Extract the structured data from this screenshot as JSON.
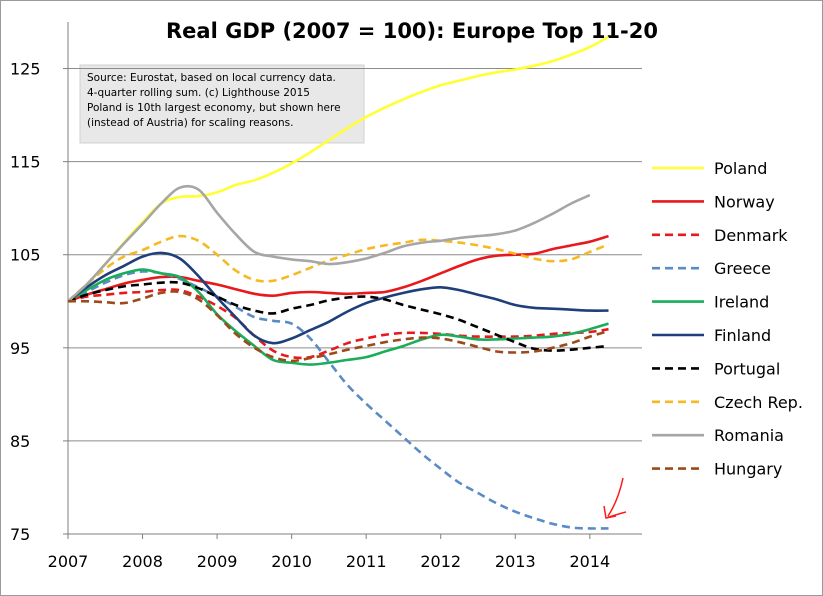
{
  "chart_data": {
    "type": "line",
    "title": "Real GDP (2007 = 100): Europe Top 11-20",
    "xlabel": "",
    "ylabel": "",
    "xlim": [
      2007,
      2014.7
    ],
    "ylim": [
      75,
      130
    ],
    "x_ticks": [
      2007,
      2008,
      2009,
      2010,
      2011,
      2012,
      2013,
      2014
    ],
    "y_ticks": [
      75,
      85,
      95,
      105,
      115,
      125
    ],
    "grid": "horizontal",
    "legend_position": "right",
    "annotation": {
      "lines": [
        "Source: Eurostat, based on local currency data.",
        "4-quarter rolling sum. (c) Lighthouse 2015",
        "Poland is 10th largest economy, but shown here",
        "(instead of Austria) for scaling reasons."
      ]
    },
    "series": [
      {
        "name": "Poland",
        "color": "#ffff33",
        "dash": "solid",
        "x": [
          2007,
          2007.25,
          2007.5,
          2007.75,
          2008,
          2008.25,
          2008.5,
          2008.75,
          2009,
          2009.25,
          2009.5,
          2009.75,
          2010,
          2010.25,
          2010.5,
          2010.75,
          2011,
          2011.25,
          2011.5,
          2011.75,
          2012,
          2012.25,
          2012.5,
          2012.75,
          2013,
          2013.25,
          2013.5,
          2013.75,
          2014,
          2014.25
        ],
        "y": [
          100,
          101.8,
          104,
          106.3,
          108.5,
          110.5,
          111.2,
          111.3,
          111.7,
          112.5,
          113,
          113.8,
          114.8,
          116,
          117.3,
          118.6,
          119.8,
          120.8,
          121.7,
          122.5,
          123.2,
          123.7,
          124.2,
          124.6,
          124.9,
          125.3,
          125.8,
          126.5,
          127.3,
          128.4
        ]
      },
      {
        "name": "Norway",
        "color": "#e8191c",
        "dash": "solid",
        "x": [
          2007,
          2007.25,
          2007.5,
          2007.75,
          2008,
          2008.25,
          2008.5,
          2008.75,
          2009,
          2009.25,
          2009.5,
          2009.75,
          2010,
          2010.25,
          2010.5,
          2010.75,
          2011,
          2011.25,
          2011.5,
          2011.75,
          2012,
          2012.25,
          2012.5,
          2012.75,
          2013,
          2013.25,
          2013.5,
          2013.75,
          2014,
          2014.25
        ],
        "y": [
          100,
          100.7,
          101.3,
          101.9,
          102.3,
          102.6,
          102.6,
          102.2,
          101.8,
          101.3,
          100.8,
          100.6,
          100.9,
          101,
          100.9,
          100.8,
          100.9,
          101,
          101.5,
          102.2,
          103,
          103.8,
          104.5,
          104.9,
          105,
          105.1,
          105.6,
          106,
          106.4,
          107
        ]
      },
      {
        "name": "Denmark",
        "color": "#e8191c",
        "dash": "dashed",
        "x": [
          2007,
          2007.25,
          2007.5,
          2007.75,
          2008,
          2008.25,
          2008.5,
          2008.75,
          2009,
          2009.25,
          2009.5,
          2009.75,
          2010,
          2010.25,
          2010.5,
          2010.75,
          2011,
          2011.25,
          2011.5,
          2011.75,
          2012,
          2012.25,
          2012.5,
          2012.75,
          2013,
          2013.25,
          2013.5,
          2013.75,
          2014,
          2014.25
        ],
        "y": [
          100,
          100.5,
          100.7,
          100.9,
          101,
          101.2,
          101.2,
          100.5,
          99.5,
          98.2,
          96.3,
          94.7,
          94,
          94,
          94.7,
          95.5,
          96,
          96.4,
          96.6,
          96.6,
          96.5,
          96.3,
          96.2,
          96.2,
          96.2,
          96.3,
          96.5,
          96.6,
          96.7,
          97
        ]
      },
      {
        "name": "Greece",
        "color": "#5b8bc4",
        "dash": "dashed",
        "x": [
          2007,
          2007.25,
          2007.5,
          2007.75,
          2008,
          2008.25,
          2008.5,
          2008.75,
          2009,
          2009.25,
          2009.5,
          2009.75,
          2010,
          2010.25,
          2010.5,
          2010.75,
          2011,
          2011.25,
          2011.5,
          2011.75,
          2012,
          2012.25,
          2012.5,
          2012.75,
          2013,
          2013.25,
          2013.5,
          2013.75,
          2014,
          2014.25
        ],
        "y": [
          100,
          101,
          102,
          102.8,
          103.2,
          103,
          102.4,
          101.5,
          100.5,
          99.4,
          98.3,
          97.9,
          97.6,
          96,
          93.5,
          91,
          89,
          87.2,
          85.4,
          83.6,
          82,
          80.5,
          79.4,
          78.3,
          77.4,
          76.7,
          76.1,
          75.7,
          75.6,
          75.6
        ]
      },
      {
        "name": "Ireland",
        "color": "#1aad5a",
        "dash": "solid",
        "x": [
          2007,
          2007.25,
          2007.5,
          2007.75,
          2008,
          2008.25,
          2008.5,
          2008.75,
          2009,
          2009.25,
          2009.5,
          2009.75,
          2010,
          2010.25,
          2010.5,
          2010.75,
          2011,
          2011.25,
          2011.5,
          2011.75,
          2012,
          2012.25,
          2012.5,
          2012.75,
          2013,
          2013.25,
          2013.5,
          2013.75,
          2014,
          2014.25
        ],
        "y": [
          100,
          101.2,
          102.3,
          103,
          103.4,
          103,
          102.6,
          101,
          98.6,
          96.8,
          95.2,
          93.7,
          93.4,
          93.2,
          93.4,
          93.7,
          94,
          94.6,
          95.2,
          95.9,
          96.4,
          96.2,
          95.9,
          95.9,
          96,
          96.1,
          96.2,
          96.5,
          97,
          97.6
        ]
      },
      {
        "name": "Finland",
        "color": "#1f3f7a",
        "dash": "solid",
        "x": [
          2007,
          2007.25,
          2007.5,
          2007.75,
          2008,
          2008.25,
          2008.5,
          2008.75,
          2009,
          2009.25,
          2009.5,
          2009.75,
          2010,
          2010.25,
          2010.5,
          2010.75,
          2011,
          2011.25,
          2011.5,
          2011.75,
          2012,
          2012.25,
          2012.5,
          2012.75,
          2013,
          2013.25,
          2013.5,
          2013.75,
          2014,
          2014.25
        ],
        "y": [
          100,
          101.5,
          102.8,
          103.8,
          104.8,
          105.2,
          104.6,
          102.7,
          100.4,
          98.3,
          96.3,
          95.5,
          96,
          96.9,
          97.8,
          98.9,
          99.8,
          100.4,
          100.9,
          101.3,
          101.5,
          101.2,
          100.7,
          100.2,
          99.6,
          99.3,
          99.2,
          99.1,
          99,
          99
        ]
      },
      {
        "name": "Portugal",
        "color": "#000000",
        "dash": "dashed",
        "x": [
          2007,
          2007.25,
          2007.5,
          2007.75,
          2008,
          2008.25,
          2008.5,
          2008.75,
          2009,
          2009.25,
          2009.5,
          2009.75,
          2010,
          2010.25,
          2010.5,
          2010.75,
          2011,
          2011.25,
          2011.5,
          2011.75,
          2012,
          2012.25,
          2012.5,
          2012.75,
          2013,
          2013.25,
          2013.5,
          2013.75,
          2014,
          2014.25
        ],
        "y": [
          100,
          100.7,
          101.2,
          101.6,
          101.8,
          102,
          102,
          101.4,
          100.5,
          99.6,
          99,
          98.7,
          99.2,
          99.6,
          100.1,
          100.4,
          100.5,
          100.2,
          99.6,
          99.1,
          98.6,
          98,
          97.2,
          96.4,
          95.6,
          94.9,
          94.7,
          94.8,
          95,
          95.2
        ]
      },
      {
        "name": "Czech Rep.",
        "color": "#f5b921",
        "dash": "dashed",
        "x": [
          2007,
          2007.25,
          2007.5,
          2007.75,
          2008,
          2008.25,
          2008.5,
          2008.75,
          2009,
          2009.25,
          2009.5,
          2009.75,
          2010,
          2010.25,
          2010.5,
          2010.75,
          2011,
          2011.25,
          2011.5,
          2011.75,
          2012,
          2012.25,
          2012.5,
          2012.75,
          2013,
          2013.25,
          2013.5,
          2013.75,
          2014,
          2014.25
        ],
        "y": [
          100,
          101.8,
          103.5,
          104.8,
          105.5,
          106.4,
          107,
          106.5,
          105,
          103.3,
          102.3,
          102.2,
          102.8,
          103.6,
          104.4,
          105,
          105.6,
          106,
          106.3,
          106.6,
          106.5,
          106.3,
          106,
          105.6,
          105.1,
          104.6,
          104.3,
          104.5,
          105.3,
          106.1
        ]
      },
      {
        "name": "Romania",
        "color": "#a6a6a6",
        "dash": "solid",
        "x": [
          2007,
          2007.25,
          2007.5,
          2007.75,
          2008,
          2008.25,
          2008.5,
          2008.75,
          2009,
          2009.25,
          2009.5,
          2009.75,
          2010,
          2010.25,
          2010.5,
          2010.75,
          2011,
          2011.25,
          2011.5,
          2011.75,
          2012,
          2012.25,
          2012.5,
          2012.75,
          2013,
          2013.25,
          2013.5,
          2013.75,
          2014
        ],
        "y": [
          100,
          101.8,
          104,
          106.2,
          108.3,
          110.5,
          112.2,
          112,
          109.5,
          107.2,
          105.3,
          104.8,
          104.5,
          104.3,
          104,
          104.2,
          104.6,
          105.2,
          105.9,
          106.3,
          106.5,
          106.8,
          107,
          107.2,
          107.6,
          108.4,
          109.4,
          110.5,
          111.4
        ]
      },
      {
        "name": "Hungary",
        "color": "#9c4a1a",
        "dash": "dashed",
        "x": [
          2007,
          2007.25,
          2007.5,
          2007.75,
          2008,
          2008.25,
          2008.5,
          2008.75,
          2009,
          2009.25,
          2009.5,
          2009.75,
          2010,
          2010.25,
          2010.5,
          2010.75,
          2011,
          2011.25,
          2011.5,
          2011.75,
          2012,
          2012.25,
          2012.5,
          2012.75,
          2013,
          2013.25,
          2013.5,
          2013.75,
          2014,
          2014.25
        ],
        "y": [
          100,
          100,
          99.9,
          99.8,
          100.3,
          100.9,
          101,
          100.2,
          98.5,
          96.5,
          95,
          94,
          93.6,
          93.9,
          94.3,
          94.8,
          95.2,
          95.6,
          95.9,
          96.1,
          96,
          95.6,
          95.1,
          94.6,
          94.5,
          94.6,
          95,
          95.5,
          96.2,
          96.8
        ]
      }
    ]
  }
}
